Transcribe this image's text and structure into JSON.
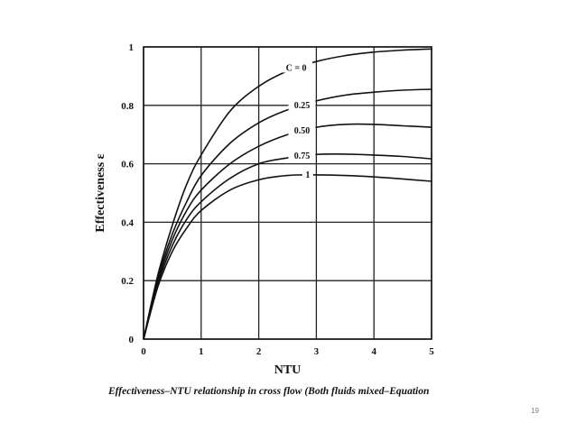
{
  "slide": {
    "caption": "Effectiveness–NTU relationship in cross flow (Both fluids mixed–Equation",
    "page_number": "19"
  },
  "chart_data": {
    "type": "line",
    "title": "",
    "xlabel": "NTU",
    "ylabel": "Effectiveness ε",
    "xlim": [
      0,
      5
    ],
    "ylim": [
      0,
      1
    ],
    "x_ticks": [
      0,
      1,
      2,
      3,
      4,
      5
    ],
    "y_ticks": [
      0,
      0.2,
      0.4,
      0.6,
      0.8,
      1
    ],
    "x_tick_labels": [
      "0",
      "1",
      "2",
      "3",
      "4",
      "5"
    ],
    "y_tick_labels": [
      "0",
      "0.2",
      "0.4",
      "0.6",
      "0.8",
      "1"
    ],
    "grid": true,
    "series": [
      {
        "name": "C = 0",
        "x": [
          0,
          0.25,
          0.5,
          0.75,
          1,
          1.5,
          2,
          2.5,
          3,
          3.5,
          4,
          4.5,
          5
        ],
        "y": [
          0,
          0.22,
          0.39,
          0.53,
          0.63,
          0.78,
          0.865,
          0.918,
          0.95,
          0.97,
          0.982,
          0.989,
          0.993
        ]
      },
      {
        "name": "0.25",
        "x": [
          0,
          0.25,
          0.5,
          0.75,
          1,
          1.5,
          2,
          2.5,
          3,
          3.5,
          4,
          4.5,
          5
        ],
        "y": [
          0,
          0.21,
          0.36,
          0.47,
          0.56,
          0.67,
          0.74,
          0.785,
          0.815,
          0.835,
          0.845,
          0.852,
          0.855
        ]
      },
      {
        "name": "0.50",
        "x": [
          0,
          0.25,
          0.5,
          0.75,
          1,
          1.5,
          2,
          2.5,
          3,
          3.5,
          4,
          4.5,
          5
        ],
        "y": [
          0,
          0.2,
          0.34,
          0.44,
          0.51,
          0.6,
          0.66,
          0.7,
          0.725,
          0.735,
          0.735,
          0.73,
          0.725
        ]
      },
      {
        "name": "0.75",
        "x": [
          0,
          0.25,
          0.5,
          0.75,
          1,
          1.5,
          2,
          2.5,
          3,
          3.5,
          4,
          4.5,
          5
        ],
        "y": [
          0,
          0.19,
          0.32,
          0.41,
          0.47,
          0.55,
          0.6,
          0.62,
          0.632,
          0.633,
          0.63,
          0.625,
          0.617
        ]
      },
      {
        "name": "1",
        "x": [
          0,
          0.25,
          0.5,
          0.75,
          1,
          1.5,
          2,
          2.5,
          3,
          3.5,
          4,
          4.5,
          5
        ],
        "y": [
          0,
          0.18,
          0.3,
          0.38,
          0.44,
          0.51,
          0.545,
          0.56,
          0.562,
          0.56,
          0.555,
          0.548,
          0.54
        ]
      }
    ]
  }
}
